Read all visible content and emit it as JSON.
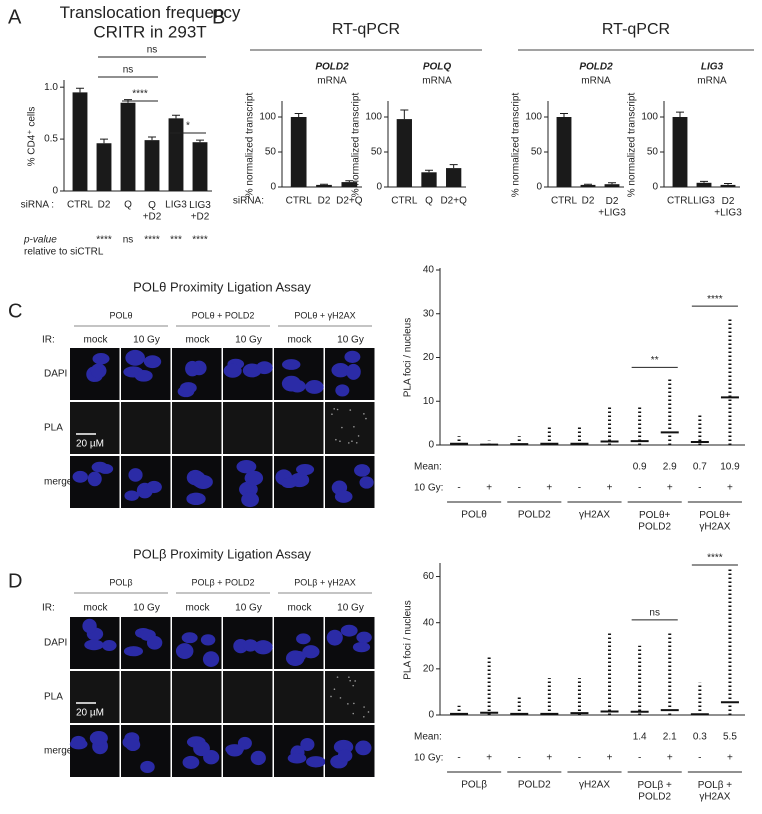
{
  "figure": {
    "panel_labels": [
      "A",
      "B",
      "C",
      "D"
    ],
    "group_titles": [
      "RT-qPCR",
      "RT-qPCR"
    ]
  },
  "chart_data": [
    {
      "type": "bar",
      "title": "Translocation frequency\nCRITR in 293T",
      "ylabel": "% CD4⁺ cells",
      "category_title": "siRNA :",
      "categories": [
        "CTRL",
        "D2",
        "Q",
        "Q\n+D2",
        "LIG3",
        "LIG3\n+D2"
      ],
      "values": [
        0.95,
        0.46,
        0.85,
        0.49,
        0.7,
        0.47
      ],
      "errors": [
        0.04,
        0.04,
        0.03,
        0.03,
        0.03,
        0.02
      ],
      "color": "#1a1a1a",
      "ylim": [
        0,
        1.05
      ],
      "yticks": [
        0,
        0.5,
        {
          "value": 1,
          "label": "1.0"
        }
      ],
      "pvalue_title": "p-value",
      "pvalue_subtitle": "relative to siCTRL",
      "pvalue_labels": [
        null,
        "****",
        "ns",
        "****",
        "***",
        "****"
      ],
      "annotations": [
        {
          "from": 1,
          "to": 5,
          "label": "ns"
        },
        {
          "from": 1,
          "to": 3,
          "label": "ns"
        },
        {
          "from": 2,
          "to": 3,
          "label": "****"
        },
        {
          "from": 4,
          "to": 5,
          "label": "*"
        }
      ]
    },
    {
      "type": "bar",
      "title": "POLD2",
      "subtitle": "mRNA",
      "ylabel": "% normalized transcript",
      "category_title": "siRNA:",
      "categories": [
        "CTRL",
        "D2",
        "D2+Q"
      ],
      "values": [
        100,
        3,
        7
      ],
      "errors": [
        5,
        1,
        2
      ],
      "color": "#1a1a1a",
      "ylim": [
        0,
        120
      ],
      "yticks": [
        0,
        50,
        100
      ]
    },
    {
      "type": "bar",
      "title": "POLQ",
      "subtitle": "mRNA",
      "ylabel": "% normalized transcript",
      "categories": [
        "CTRL",
        "Q",
        "D2+Q"
      ],
      "values": [
        97,
        21,
        27
      ],
      "errors": [
        13,
        3,
        5
      ],
      "color": "#1a1a1a",
      "ylim": [
        0,
        120
      ],
      "yticks": [
        0,
        50,
        100
      ]
    },
    {
      "type": "bar",
      "title": "POLD2",
      "subtitle": "mRNA",
      "ylabel": "% normalized transcript",
      "categories": [
        "CTRL",
        "D2",
        "D2\n+LIG3"
      ],
      "values": [
        100,
        3,
        4
      ],
      "errors": [
        5,
        1,
        2
      ],
      "color": "#1a1a1a",
      "ylim": [
        0,
        120
      ],
      "yticks": [
        0,
        50,
        100
      ]
    },
    {
      "type": "bar",
      "title": "LIG3",
      "subtitle": "mRNA",
      "ylabel": "% normalized transcript",
      "categories": [
        "CTRL",
        "LIG3",
        "D2\n+LIG3"
      ],
      "values": [
        100,
        6,
        3
      ],
      "errors": [
        7,
        2,
        2
      ],
      "color": "#1a1a1a",
      "ylim": [
        0,
        120
      ],
      "yticks": [
        0,
        50,
        100
      ]
    },
    {
      "type": "dot",
      "ylabel": "PLA foci / nucleus",
      "mean_title": "Mean:",
      "category_title": "10 Gy:",
      "categories": [
        "-",
        "+",
        "-",
        "+",
        "-",
        "+",
        "-",
        "+",
        "-",
        "+"
      ],
      "groups": [
        "POLθ",
        "POLD2",
        "γH2AX",
        "POLθ+\nPOLD2",
        "POLθ+\nγH2AX"
      ],
      "values": [
        0.3,
        0.1,
        0.2,
        0.3,
        0.3,
        0.8,
        0.9,
        2.9,
        0.7,
        10.9
      ],
      "value_labels": [
        null,
        null,
        null,
        null,
        null,
        null,
        "0.9",
        "2.9",
        "0.7",
        "10.9"
      ],
      "maxima": [
        2,
        1,
        2,
        4,
        4,
        9,
        9,
        15,
        7,
        29
      ],
      "color": "#111111",
      "ylim": [
        0,
        40
      ],
      "yticks": [
        0,
        10,
        20,
        30,
        40
      ],
      "annotations": [
        {
          "from": 6,
          "to": 7,
          "label": "**"
        },
        {
          "from": 8,
          "to": 9,
          "label": "****"
        }
      ]
    },
    {
      "type": "dot",
      "ylabel": "PLA foci / nucleus",
      "mean_title": "Mean:",
      "category_title": "10 Gy:",
      "categories": [
        "-",
        "+",
        "-",
        "+",
        "-",
        "+",
        "-",
        "+",
        "-",
        "+"
      ],
      "groups": [
        "POLβ",
        "POLD2",
        "γH2AX",
        "POLβ +\nPOLD2",
        "POLβ +\nγH2AX"
      ],
      "values": [
        0.5,
        1,
        0.5,
        0.5,
        0.8,
        1.5,
        1.4,
        2.1,
        0.3,
        5.5
      ],
      "value_labels": [
        null,
        null,
        null,
        null,
        null,
        null,
        "1.4",
        "2.1",
        "0.3",
        "5.5"
      ],
      "maxima": [
        4,
        25,
        8,
        16,
        16,
        36,
        30,
        36,
        14,
        64
      ],
      "color": "#111111",
      "ylim": [
        0,
        65
      ],
      "yticks": [
        0,
        20,
        40,
        60
      ],
      "annotations": [
        {
          "from": 6,
          "to": 7,
          "label": "ns"
        },
        {
          "from": 8,
          "to": 9,
          "label": "****"
        }
      ]
    }
  ],
  "microscopy": [
    {
      "title": "POLθ Proximity Ligation Assay",
      "groups": [
        "POLθ",
        "POLθ + POLD2",
        "POLθ + γH2AX"
      ],
      "ir_title": "IR:",
      "conditions": [
        "mock",
        "10 Gy",
        "mock",
        "10 Gy",
        "mock",
        "10 Gy"
      ],
      "rows": [
        "DAPI",
        "PLA",
        "merge"
      ],
      "scale": "20 µM"
    },
    {
      "title": "POLβ Proximity Ligation Assay",
      "groups": [
        "POLβ",
        "POLβ + POLD2",
        "POLβ + γH2AX"
      ],
      "ir_title": "IR:",
      "conditions": [
        "mock",
        "10 Gy",
        "mock",
        "10 Gy",
        "mock",
        "10 Gy"
      ],
      "rows": [
        "DAPI",
        "PLA",
        "merge"
      ],
      "scale": "20 µM"
    }
  ]
}
